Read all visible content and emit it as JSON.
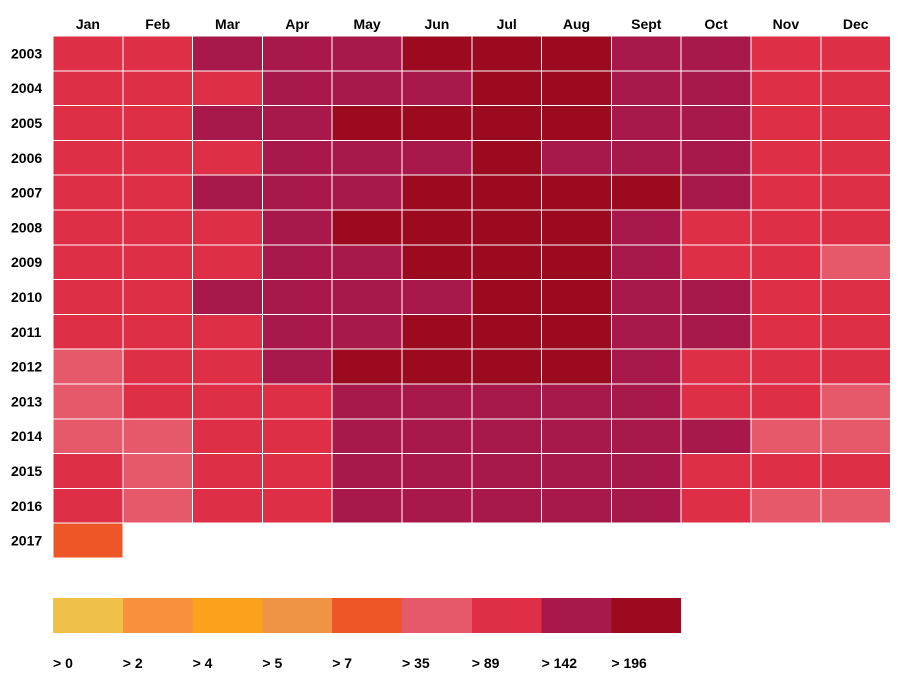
{
  "chart_data": {
    "type": "heatmap",
    "columns": [
      "Jan",
      "Feb",
      "Mar",
      "Apr",
      "May",
      "Jun",
      "Jul",
      "Aug",
      "Sept",
      "Oct",
      "Nov",
      "Dec"
    ],
    "rows": [
      "2003",
      "2004",
      "2005",
      "2006",
      "2007",
      "2008",
      "2009",
      "2010",
      "2011",
      "2012",
      "2013",
      "2014",
      "2015",
      "2016",
      "2017"
    ],
    "bins": [
      ">0",
      ">2",
      ">4",
      ">5",
      ">7",
      ">35",
      ">89",
      ">142",
      ">196"
    ],
    "bin_colors": [
      "#f0c148",
      "#f8903e",
      "#fba11b",
      "#ef9444",
      "#ef5627",
      "#e6596b",
      "#de2f46",
      "#a8184a",
      "#9b0a1e"
    ],
    "cells": [
      [
        ">89",
        ">89",
        ">142",
        ">142",
        ">142",
        ">196",
        ">196",
        ">196",
        ">142",
        ">142",
        ">89",
        ">89"
      ],
      [
        ">89",
        ">89",
        ">89",
        ">142",
        ">142",
        ">142",
        ">196",
        ">196",
        ">142",
        ">142",
        ">89",
        ">89"
      ],
      [
        ">89",
        ">89",
        ">142",
        ">142",
        ">196",
        ">196",
        ">196",
        ">196",
        ">142",
        ">142",
        ">89",
        ">89"
      ],
      [
        ">89",
        ">89",
        ">89",
        ">142",
        ">142",
        ">142",
        ">196",
        ">142",
        ">142",
        ">142",
        ">89",
        ">89"
      ],
      [
        ">89",
        ">89",
        ">142",
        ">142",
        ">142",
        ">196",
        ">196",
        ">196",
        ">196",
        ">142",
        ">89",
        ">89"
      ],
      [
        ">89",
        ">89",
        ">89",
        ">142",
        ">196",
        ">196",
        ">196",
        ">196",
        ">142",
        ">89",
        ">89",
        ">89"
      ],
      [
        ">89",
        ">89",
        ">89",
        ">142",
        ">142",
        ">196",
        ">196",
        ">196",
        ">142",
        ">89",
        ">89",
        ">35"
      ],
      [
        ">89",
        ">89",
        ">142",
        ">142",
        ">142",
        ">142",
        ">196",
        ">196",
        ">142",
        ">142",
        ">89",
        ">89"
      ],
      [
        ">89",
        ">89",
        ">89",
        ">142",
        ">142",
        ">196",
        ">196",
        ">196",
        ">142",
        ">142",
        ">89",
        ">89"
      ],
      [
        ">35",
        ">89",
        ">89",
        ">142",
        ">196",
        ">196",
        ">196",
        ">196",
        ">142",
        ">89",
        ">89",
        ">89"
      ],
      [
        ">35",
        ">89",
        ">89",
        ">89",
        ">142",
        ">142",
        ">142",
        ">142",
        ">142",
        ">89",
        ">89",
        ">35"
      ],
      [
        ">35",
        ">35",
        ">89",
        ">89",
        ">142",
        ">142",
        ">142",
        ">142",
        ">142",
        ">142",
        ">35",
        ">35"
      ],
      [
        ">89",
        ">35",
        ">89",
        ">89",
        ">142",
        ">142",
        ">142",
        ">142",
        ">142",
        ">89",
        ">89",
        ">89"
      ],
      [
        ">89",
        ">35",
        ">89",
        ">89",
        ">142",
        ">142",
        ">142",
        ">142",
        ">142",
        ">89",
        ">35",
        ">35"
      ],
      [
        ">7",
        null,
        null,
        null,
        null,
        null,
        null,
        null,
        null,
        null,
        null,
        null
      ]
    ],
    "legend": {
      "labels": [
        "> 0",
        "> 2",
        "> 4",
        "> 5",
        "> 7",
        "> 35",
        "> 89",
        "> 142",
        "> 196"
      ],
      "placement": "bottom-left"
    }
  }
}
